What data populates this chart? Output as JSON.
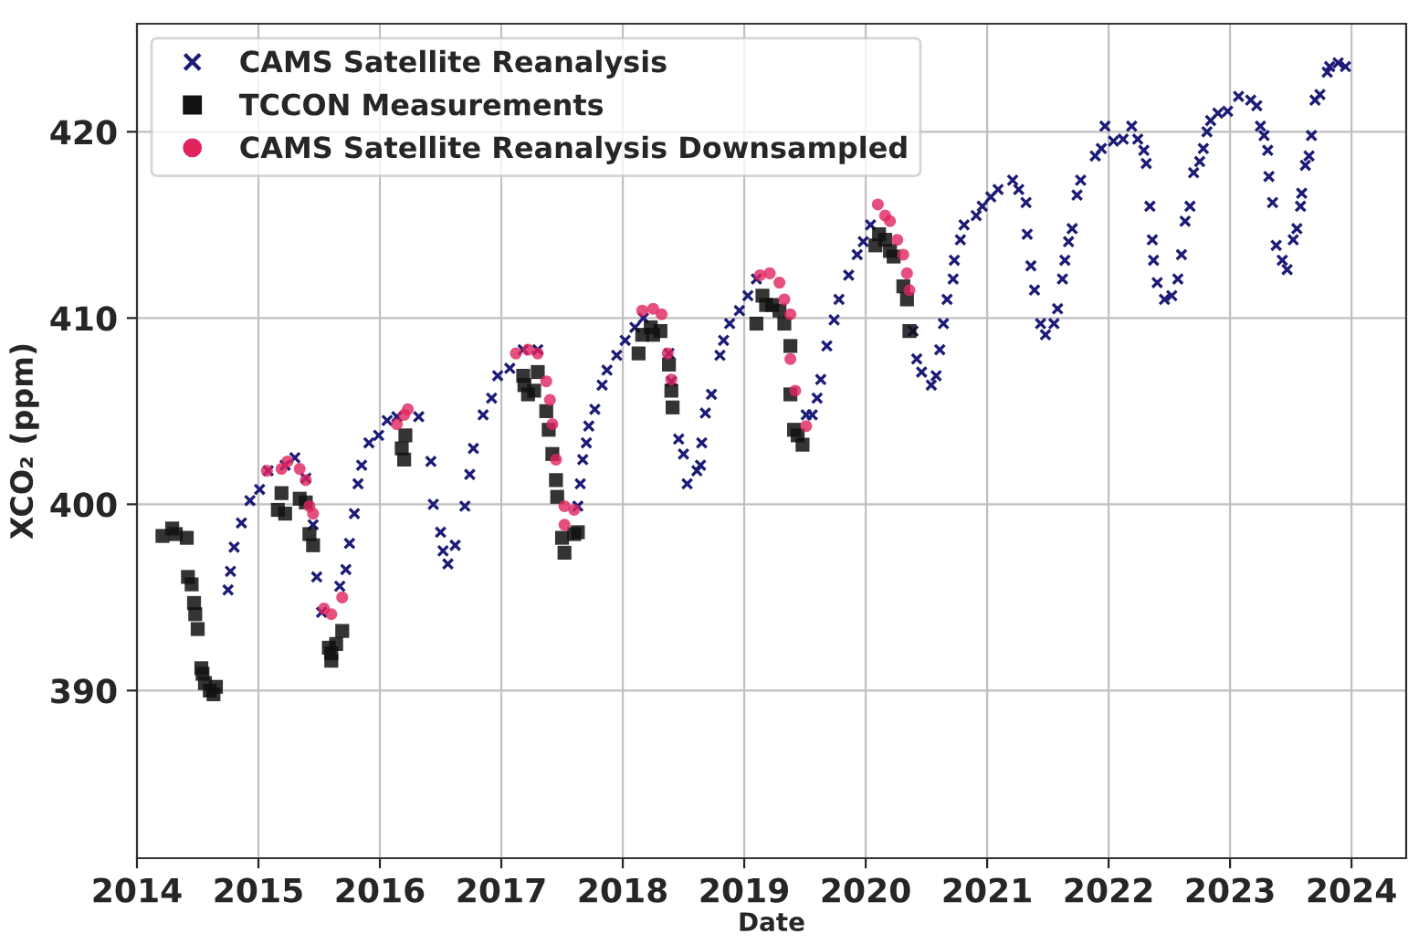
{
  "chart_data": {
    "type": "scatter",
    "xlabel": "Date",
    "ylabel": "XCO₂ (ppm)",
    "xlim": [
      2014,
      2024.45
    ],
    "ylim": [
      381,
      425.8
    ],
    "xticks": [
      2014,
      2015,
      2016,
      2017,
      2018,
      2019,
      2020,
      2021,
      2022,
      2023,
      2024
    ],
    "yticks": [
      390,
      400,
      410,
      420
    ],
    "grid": true,
    "legend": "top left",
    "series": [
      {
        "name": "CAMS Satellite Reanalysis",
        "color": "#1c1c78",
        "marker": "cross",
        "x": [
          2014.75,
          2014.77,
          2014.8,
          2014.86,
          2014.93,
          2015.01,
          2015.08,
          2015.22,
          2015.3,
          2015.39,
          2015.45,
          2015.48,
          2015.52,
          2015.67,
          2015.72,
          2015.75,
          2015.79,
          2015.82,
          2015.85,
          2015.91,
          2015.99,
          2016.06,
          2016.14,
          2016.32,
          2016.42,
          2016.44,
          2016.5,
          2016.52,
          2016.56,
          2016.62,
          2016.7,
          2016.74,
          2016.77,
          2016.85,
          2016.92,
          2016.97,
          2017.07,
          2017.18,
          2017.3,
          2017.63,
          2017.65,
          2017.67,
          2017.7,
          2017.72,
          2017.77,
          2017.83,
          2017.87,
          2017.95,
          2018.02,
          2018.1,
          2018.17,
          2018.38,
          2018.4,
          2018.46,
          2018.5,
          2018.53,
          2018.61,
          2018.64,
          2018.65,
          2018.68,
          2018.73,
          2018.8,
          2018.83,
          2018.88,
          2018.96,
          2019.03,
          2019.1,
          2019.51,
          2019.56,
          2019.6,
          2019.63,
          2019.68,
          2019.74,
          2019.78,
          2019.86,
          2019.93,
          2019.98,
          2020.04,
          2020.39,
          2020.42,
          2020.46,
          2020.54,
          2020.58,
          2020.61,
          2020.64,
          2020.67,
          2020.72,
          2020.73,
          2020.78,
          2020.81,
          2020.91,
          2020.96,
          2021.03,
          2021.09,
          2021.21,
          2021.26,
          2021.32,
          2021.33,
          2021.36,
          2021.39,
          2021.44,
          2021.48,
          2021.55,
          2021.58,
          2021.62,
          2021.64,
          2021.67,
          2021.7,
          2021.74,
          2021.77,
          2021.89,
          2021.94,
          2021.97,
          2022.04,
          2022.12,
          2022.19,
          2022.24,
          2022.29,
          2022.31,
          2022.34,
          2022.36,
          2022.37,
          2022.4,
          2022.46,
          2022.52,
          2022.57,
          2022.6,
          2022.63,
          2022.67,
          2022.7,
          2022.75,
          2022.78,
          2022.81,
          2022.84,
          2022.9,
          2022.98,
          2023.07,
          2023.17,
          2023.22,
          2023.25,
          2023.28,
          2023.31,
          2023.32,
          2023.35,
          2023.38,
          2023.43,
          2023.47,
          2023.52,
          2023.55,
          2023.58,
          2023.59,
          2023.62,
          2023.65,
          2023.67,
          2023.7,
          2023.74,
          2023.8,
          2023.82,
          2023.89,
          2023.95
        ],
        "values": [
          395.4,
          396.4,
          397.7,
          399.0,
          400.2,
          400.8,
          401.8,
          402.1,
          402.5,
          401.4,
          398.9,
          396.1,
          394.2,
          395.6,
          396.5,
          397.9,
          399.5,
          401.1,
          402.1,
          403.3,
          403.7,
          404.5,
          404.7,
          404.7,
          402.3,
          400.0,
          398.5,
          397.5,
          396.8,
          397.8,
          399.9,
          401.6,
          403.0,
          404.8,
          405.7,
          406.9,
          407.3,
          408.3,
          408.3,
          399.9,
          401.1,
          402.4,
          403.3,
          404.2,
          405.1,
          406.4,
          407.2,
          408.0,
          408.8,
          409.5,
          410.0,
          408.1,
          406.6,
          403.5,
          402.7,
          401.1,
          401.8,
          402.1,
          403.3,
          404.9,
          405.9,
          408.0,
          408.8,
          409.7,
          410.4,
          411.2,
          412.1,
          404.8,
          404.8,
          405.7,
          406.7,
          408.5,
          409.9,
          411.0,
          412.3,
          413.4,
          414.1,
          415.0,
          409.3,
          407.8,
          407.1,
          406.4,
          406.9,
          408.3,
          409.7,
          411.0,
          412.1,
          413.1,
          414.2,
          415.0,
          415.5,
          416.0,
          416.5,
          416.9,
          417.4,
          416.9,
          416.2,
          414.5,
          412.8,
          411.5,
          409.7,
          409.1,
          409.7,
          410.5,
          412.1,
          413.1,
          414.1,
          414.8,
          416.6,
          417.4,
          418.7,
          419.1,
          420.3,
          419.5,
          419.6,
          420.3,
          419.6,
          419.0,
          418.3,
          416.0,
          414.2,
          413.1,
          411.9,
          411.0,
          411.2,
          412.1,
          413.4,
          415.2,
          416.0,
          417.8,
          418.4,
          419.1,
          420.0,
          420.6,
          421.0,
          421.1,
          421.9,
          421.7,
          421.4,
          420.3,
          419.8,
          419.0,
          417.6,
          416.2,
          413.9,
          413.1,
          412.6,
          414.2,
          414.8,
          416.0,
          416.7,
          418.2,
          418.7,
          419.8,
          421.7,
          422.0,
          423.2,
          423.5,
          423.7,
          423.5
        ]
      },
      {
        "name": "TCCON Measurements",
        "color": "#111111",
        "marker": "square",
        "x": [
          2014.21,
          2014.29,
          2014.32,
          2014.41,
          2014.42,
          2014.45,
          2014.47,
          2014.48,
          2014.5,
          2014.53,
          2014.54,
          2014.56,
          2014.6,
          2014.63,
          2014.65,
          2015.16,
          2015.19,
          2015.22,
          2015.34,
          2015.39,
          2015.42,
          2015.45,
          2015.58,
          2015.6,
          2015.6,
          2015.64,
          2015.69,
          2016.18,
          2016.2,
          2016.21,
          2017.18,
          2017.19,
          2017.22,
          2017.27,
          2017.3,
          2017.37,
          2017.39,
          2017.42,
          2017.45,
          2017.46,
          2017.5,
          2017.52,
          2017.6,
          2017.63,
          2018.13,
          2018.16,
          2018.23,
          2018.25,
          2018.31,
          2018.38,
          2018.4,
          2018.41,
          2019.1,
          2019.15,
          2019.18,
          2019.23,
          2019.29,
          2019.33,
          2019.38,
          2019.38,
          2019.41,
          2019.44,
          2019.48,
          2020.08,
          2020.11,
          2020.16,
          2020.2,
          2020.23,
          2020.31,
          2020.34,
          2020.36
        ],
        "values": [
          398.3,
          398.7,
          398.4,
          398.2,
          396.1,
          395.7,
          394.7,
          394.1,
          393.3,
          391.2,
          390.9,
          390.4,
          390.0,
          389.8,
          390.2,
          399.7,
          400.6,
          399.5,
          400.3,
          400.1,
          398.4,
          397.8,
          392.3,
          392.0,
          391.6,
          392.5,
          393.2,
          403.0,
          402.4,
          403.7,
          406.9,
          406.4,
          405.9,
          406.1,
          407.1,
          405.0,
          404.0,
          402.7,
          401.3,
          400.4,
          398.2,
          397.4,
          398.4,
          398.5,
          408.1,
          409.1,
          409.5,
          409.1,
          409.3,
          407.5,
          406.1,
          405.2,
          409.7,
          411.2,
          410.7,
          410.7,
          410.4,
          409.7,
          408.5,
          405.9,
          404.0,
          403.7,
          403.2,
          413.9,
          414.5,
          414.2,
          413.6,
          413.3,
          411.7,
          411.0,
          409.3
        ]
      },
      {
        "name": "CAMS Satellite Reanalysis Downsampled",
        "color": "#e0245e",
        "marker": "circle",
        "x": [
          2015.07,
          2015.19,
          2015.24,
          2015.34,
          2015.39,
          2015.42,
          2015.45,
          2015.54,
          2015.6,
          2015.69,
          2016.14,
          2016.2,
          2016.23,
          2017.12,
          2017.22,
          2017.3,
          2017.37,
          2017.4,
          2017.42,
          2017.45,
          2017.52,
          2017.52,
          2017.6,
          2018.16,
          2018.25,
          2018.32,
          2018.37,
          2018.4,
          2019.13,
          2019.21,
          2019.29,
          2019.33,
          2019.38,
          2019.38,
          2019.42,
          2019.51,
          2020.1,
          2020.16,
          2020.2,
          2020.26,
          2020.31,
          2020.34,
          2020.36
        ],
        "values": [
          401.8,
          401.9,
          402.3,
          401.9,
          401.3,
          399.9,
          399.5,
          394.4,
          394.1,
          395.0,
          404.3,
          404.8,
          405.1,
          408.1,
          408.3,
          408.1,
          406.6,
          405.6,
          404.3,
          402.4,
          399.9,
          398.9,
          399.7,
          410.4,
          410.5,
          410.2,
          408.1,
          406.7,
          412.3,
          412.4,
          411.9,
          411.0,
          410.2,
          407.8,
          406.1,
          404.2,
          416.1,
          415.5,
          415.2,
          414.2,
          413.4,
          412.4,
          411.5
        ]
      }
    ]
  }
}
